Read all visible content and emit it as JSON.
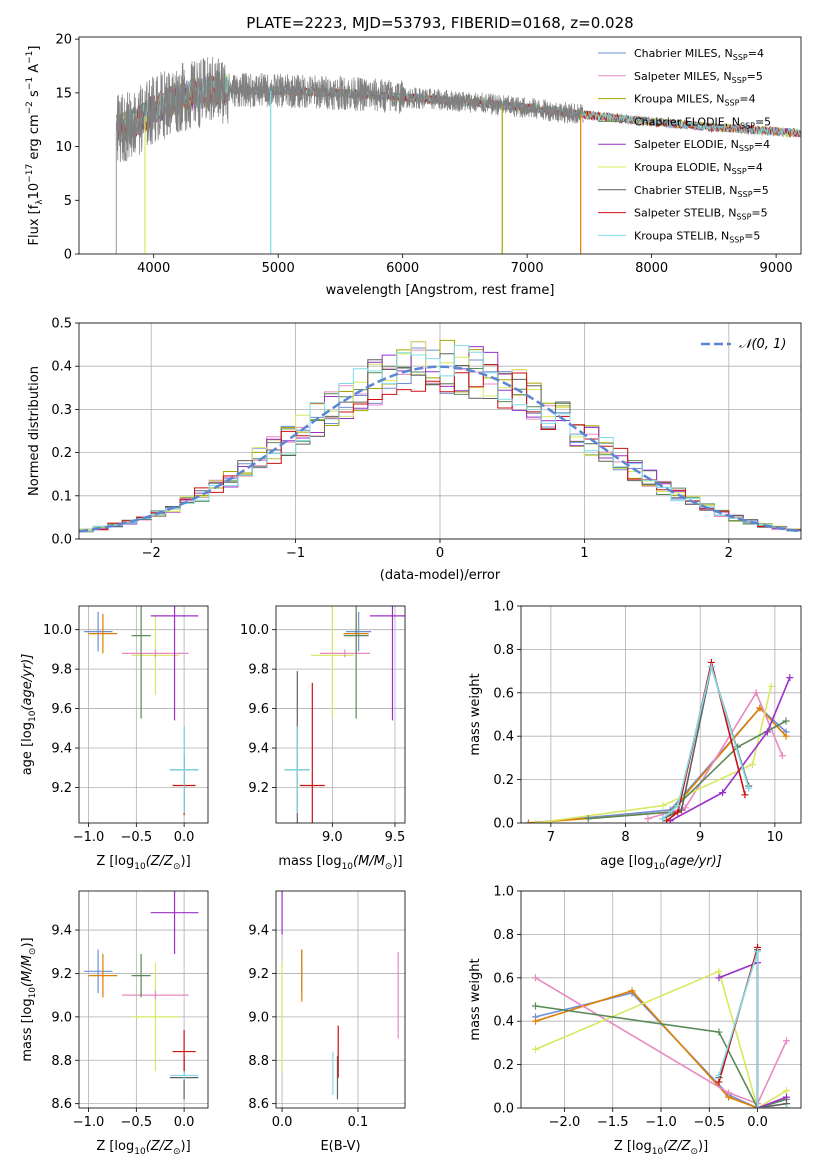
{
  "colors": {
    "chabrier_miles": "#6f8fd8",
    "salpeter_miles": "#e07f00",
    "kroupa_miles": "#a6a600",
    "chabrier_elodie": "#5a8a5a",
    "salpeter_elodie": "#9b30c9",
    "kroupa_elodie": "#d8e860",
    "chabrier_stelib": "#606060",
    "salpeter_stelib": "#cc1010",
    "kroupa_stelib": "#7fdce8",
    "model_legend": [
      "#6f8fd8",
      "#e88ac0",
      "#a6a600",
      "#5a8a5a",
      "#9b30c9",
      "#d8e860",
      "#606060",
      "#cc1010",
      "#7fdce8"
    ],
    "normal_curve": "#5b86d6",
    "data": "#808080"
  },
  "chart_data": [
    {
      "id": "spectrum",
      "type": "line",
      "title": "PLATE=2223, MJD=53793, FIBERID=0168, z=0.028",
      "xlabel": "wavelength [Angstrom, rest frame]",
      "ylabel_text": "Flux [f",
      "ylabel_sub": "λ",
      "ylabel_rest": "10",
      "ylabel_sup": "−17",
      "ylabel_tail": " erg cm",
      "ylabel_sup2": "−2",
      "ylabel_tail2": " s",
      "ylabel_sup3": "−1",
      "ylabel_tail3": " A",
      "ylabel_sup4": "−1",
      "ylabel_end": "]",
      "xlim": [
        3400,
        9200
      ],
      "ylim": [
        0,
        20.2
      ],
      "xticks": [
        4000,
        5000,
        6000,
        7000,
        8000,
        9000
      ],
      "yticks": [
        0,
        5,
        10,
        15,
        20
      ],
      "continuum": [
        [
          3700,
          11.5
        ],
        [
          3900,
          12.5
        ],
        [
          4000,
          13.5
        ],
        [
          4200,
          14.5
        ],
        [
          4500,
          15.3
        ],
        [
          5000,
          15.2
        ],
        [
          5500,
          15.0
        ],
        [
          6000,
          14.6
        ],
        [
          6500,
          14.2
        ],
        [
          7000,
          13.6
        ],
        [
          7500,
          12.9
        ],
        [
          8000,
          12.3
        ],
        [
          8500,
          11.8
        ],
        [
          9000,
          11.4
        ],
        [
          9200,
          11.2
        ]
      ],
      "data_range": [
        3700,
        7450
      ],
      "model_range": [
        3700,
        9200
      ],
      "series": [
        {
          "name": "Chabrier MILES, N",
          "sub": "SSP",
          "val": "=4"
        },
        {
          "name": "Salpeter MILES, N",
          "sub": "SSP",
          "val": "=5"
        },
        {
          "name": "Kroupa MILES, N",
          "sub": "SSP",
          "val": "=4"
        },
        {
          "name": "Chabrier ELODIE, N",
          "sub": "SSP",
          "val": "=5"
        },
        {
          "name": "Salpeter ELODIE, N",
          "sub": "SSP",
          "val": "=4"
        },
        {
          "name": "Kroupa ELODIE, N",
          "sub": "SSP",
          "val": "=4"
        },
        {
          "name": "Chabrier STELIB, N",
          "sub": "SSP",
          "val": "=5"
        },
        {
          "name": "Salpeter STELIB, N",
          "sub": "SSP",
          "val": "=5"
        },
        {
          "name": "Kroupa STELIB, N",
          "sub": "SSP",
          "val": "=5"
        }
      ]
    },
    {
      "id": "residuals",
      "type": "line",
      "xlabel": "(data-model)/error",
      "ylabel": "Normed distribution",
      "xlim": [
        -2.5,
        2.5
      ],
      "ylim": [
        0,
        0.5
      ],
      "xticks": [
        -2,
        -1,
        0,
        1,
        2
      ],
      "xticklabels": [
        "−2",
        "−1",
        "0",
        "1",
        "2"
      ],
      "yticks": [
        0.0,
        0.1,
        0.2,
        0.3,
        0.4,
        0.5
      ],
      "yticklabels": [
        "0.0",
        "0.1",
        "0.2",
        "0.3",
        "0.4",
        "0.5"
      ],
      "legend": "𝒩(0, 1)",
      "bin_width": 0.1
    },
    {
      "id": "age-vs-Z",
      "type": "scatter",
      "xlabel": "Z [log",
      "xlabel_sub": "10",
      "xlabel_tail": "(Z/Z",
      "xlabel_sub2": "⊙",
      "xlabel_end": ")]",
      "ylabel": "age  [log",
      "ylabel_sub": "10",
      "ylabel_tail": "(age/yr)]",
      "xlim": [
        -1.1,
        0.25
      ],
      "ylim": [
        9.02,
        10.12
      ],
      "xticks": [
        -1.0,
        -0.5,
        0.0
      ],
      "xticklabels": [
        "−1.0",
        "−0.5",
        "0.0"
      ],
      "yticks": [
        9.2,
        9.4,
        9.6,
        9.8,
        10.0
      ],
      "yticklabels": [
        "9.2",
        "9.4",
        "9.6",
        "9.8",
        "10.0"
      ],
      "points": [
        {
          "c": "chabrier_miles",
          "x": -0.9,
          "y": 9.99,
          "xe": 0.15,
          "ye": 0.1
        },
        {
          "c": "salpeter_miles",
          "x": -0.85,
          "y": 9.98,
          "xe": 0.15,
          "ye": 0.1
        },
        {
          "c": "kroupa_elodie",
          "x": -0.3,
          "y": 9.87,
          "xe": 0.25,
          "ye": 0.2
        },
        {
          "c": "salpeter_miles_pink",
          "x": -0.3,
          "y": 9.88,
          "xe": 0.35,
          "ye": 0.02
        },
        {
          "c": "chabrier_elodie",
          "x": -0.45,
          "y": 9.97,
          "xe": 0.1,
          "ye": 0.42
        },
        {
          "c": "salpeter_elodie",
          "x": -0.1,
          "y": 10.07,
          "xe": 0.25,
          "ye": 0.53
        },
        {
          "c": "chabrier_stelib",
          "x": 0.0,
          "y": 9.29,
          "xe": 0.15,
          "ye": 0.22
        },
        {
          "c": "salpeter_stelib",
          "x": 0.0,
          "y": 9.21,
          "xe": 0.12,
          "ye": 0.15
        },
        {
          "c": "kroupa_stelib",
          "x": 0.0,
          "y": 9.29,
          "xe": 0.15,
          "ye": 0.22
        }
      ]
    },
    {
      "id": "age-vs-mass",
      "type": "scatter",
      "xlabel": "mass [log",
      "xlabel_sub": "10",
      "xlabel_tail": "(M/M",
      "xlabel_sub2": "⊙",
      "xlabel_end": ")]",
      "xlim": [
        8.55,
        9.58
      ],
      "ylim": [
        9.02,
        10.12
      ],
      "xticks": [
        8.5,
        9.0,
        9.5
      ],
      "xticklabels": [
        "8.5",
        "9.0",
        "9.5"
      ],
      "yticks": [
        9.2,
        9.4,
        9.6,
        9.8,
        10.0
      ],
      "yticklabels": [
        "9.2",
        "9.4",
        "9.6",
        "9.8",
        "10.0"
      ],
      "points": [
        {
          "c": "chabrier_miles",
          "x": 9.21,
          "y": 9.99,
          "xe": 0.1,
          "ye": 0.1
        },
        {
          "c": "salpeter_miles",
          "x": 9.19,
          "y": 9.98,
          "xe": 0.1,
          "ye": 0.1
        },
        {
          "c": "kroupa_elodie",
          "x": 9.0,
          "y": 9.87,
          "xe": 0.17,
          "ye": 0.32
        },
        {
          "c": "salpeter_miles_pink",
          "x": 9.1,
          "y": 9.88,
          "xe": 0.2,
          "ye": 0.02
        },
        {
          "c": "chabrier_elodie",
          "x": 9.19,
          "y": 9.97,
          "xe": 0.1,
          "ye": 0.42
        },
        {
          "c": "salpeter_elodie",
          "x": 9.48,
          "y": 10.07,
          "xe": 0.18,
          "ye": 0.53
        },
        {
          "c": "chabrier_stelib",
          "x": 8.72,
          "y": 9.29,
          "xe": 0.1,
          "ye": 0.5
        },
        {
          "c": "salpeter_stelib",
          "x": 8.84,
          "y": 9.21,
          "xe": 0.1,
          "ye": 0.52
        },
        {
          "c": "kroupa_stelib",
          "x": 8.72,
          "y": 9.29,
          "xe": 0.1,
          "ye": 0.22
        }
      ]
    },
    {
      "id": "weight-vs-age",
      "type": "line",
      "xlabel": "age  [log",
      "xlabel_sub": "10",
      "xlabel_tail": "(age/yr)]",
      "ylabel": "mass weight",
      "xlim": [
        6.6,
        10.35
      ],
      "ylim": [
        0,
        1.0
      ],
      "xticks": [
        7,
        8,
        9,
        10
      ],
      "xticklabels": [
        "7",
        "8",
        "9",
        "10"
      ],
      "yticks": [
        0.0,
        0.2,
        0.4,
        0.6,
        0.8,
        1.0
      ],
      "yticklabels": [
        "0.0",
        "0.2",
        "0.4",
        "0.6",
        "0.8",
        "1.0"
      ],
      "lines": [
        {
          "c": "chabrier_miles",
          "pts": [
            [
              6.7,
              0.0
            ],
            [
              8.6,
              0.06
            ],
            [
              9.8,
              0.53
            ],
            [
              10.15,
              0.42
            ]
          ]
        },
        {
          "c": "salpeter_miles",
          "pts": [
            [
              6.7,
              0.0
            ],
            [
              8.6,
              0.05
            ],
            [
              9.8,
              0.53
            ],
            [
              10.15,
              0.4
            ]
          ]
        },
        {
          "c": "salpeter_miles_pink",
          "pts": [
            [
              8.3,
              0.02
            ],
            [
              8.8,
              0.07
            ],
            [
              9.75,
              0.6
            ],
            [
              10.1,
              0.31
            ]
          ]
        },
        {
          "c": "kroupa_elodie",
          "pts": [
            [
              6.8,
              0.0
            ],
            [
              8.5,
              0.08
            ],
            [
              9.7,
              0.27
            ],
            [
              9.95,
              0.63
            ]
          ]
        },
        {
          "c": "chabrier_elodie",
          "pts": [
            [
              7.5,
              0.02
            ],
            [
              8.6,
              0.05
            ],
            [
              9.5,
              0.35
            ],
            [
              10.15,
              0.47
            ]
          ]
        },
        {
          "c": "salpeter_elodie",
          "pts": [
            [
              8.6,
              0.01
            ],
            [
              9.3,
              0.14
            ],
            [
              9.9,
              0.42
            ],
            [
              10.2,
              0.67
            ]
          ]
        },
        {
          "c": "chabrier_stelib",
          "pts": [
            [
              8.5,
              0.02
            ],
            [
              8.75,
              0.06
            ],
            [
              9.15,
              0.72
            ],
            [
              9.65,
              0.17
            ]
          ]
        },
        {
          "c": "salpeter_stelib",
          "pts": [
            [
              8.55,
              0.01
            ],
            [
              8.7,
              0.05
            ],
            [
              9.15,
              0.74
            ],
            [
              9.6,
              0.13
            ]
          ]
        },
        {
          "c": "kroupa_stelib",
          "pts": [
            [
              8.5,
              0.02
            ],
            [
              8.7,
              0.08
            ],
            [
              9.15,
              0.72
            ],
            [
              9.65,
              0.16
            ]
          ]
        }
      ]
    },
    {
      "id": "mass-vs-Z",
      "type": "scatter",
      "xlabel": "Z [log",
      "xlabel_sub": "10",
      "xlabel_tail": "(Z/Z",
      "xlabel_sub2": "⊙",
      "xlabel_end": ")]",
      "ylabel": "mass [log",
      "ylabel_sub": "10",
      "ylabel_tail": "(M/M",
      "ylabel_sub2": "⊙",
      "ylabel_end": ")]",
      "xlim": [
        -1.1,
        0.25
      ],
      "ylim": [
        8.58,
        9.58
      ],
      "xticks": [
        -1.0,
        -0.5,
        0.0
      ],
      "xticklabels": [
        "−1.0",
        "−0.5",
        "0.0"
      ],
      "yticks": [
        8.6,
        8.8,
        9.0,
        9.2,
        9.4
      ],
      "yticklabels": [
        "8.6",
        "8.8",
        "9.0",
        "9.2",
        "9.4"
      ],
      "points": [
        {
          "c": "chabrier_miles",
          "x": -0.9,
          "y": 9.21,
          "xe": 0.15,
          "ye": 0.1
        },
        {
          "c": "salpeter_miles",
          "x": -0.85,
          "y": 9.19,
          "xe": 0.15,
          "ye": 0.1
        },
        {
          "c": "kroupa_elodie",
          "x": -0.3,
          "y": 9.0,
          "xe": 0.25,
          "ye": 0.25
        },
        {
          "c": "salpeter_miles_pink",
          "x": -0.3,
          "y": 9.1,
          "xe": 0.35,
          "ye": 0.02
        },
        {
          "c": "chabrier_elodie",
          "x": -0.45,
          "y": 9.19,
          "xe": 0.1,
          "ye": 0.1
        },
        {
          "c": "salpeter_elodie",
          "x": -0.1,
          "y": 9.48,
          "xe": 0.25,
          "ye": 0.19
        },
        {
          "c": "chabrier_stelib",
          "x": 0.0,
          "y": 8.72,
          "xe": 0.15,
          "ye": 0.1
        },
        {
          "c": "salpeter_stelib",
          "x": 0.0,
          "y": 8.84,
          "xe": 0.12,
          "ye": 0.1
        },
        {
          "c": "kroupa_stelib",
          "x": 0.0,
          "y": 8.73,
          "xe": 0.15,
          "ye": 0.02
        }
      ]
    },
    {
      "id": "mass-vs-ebv",
      "type": "scatter",
      "xlabel": "E(B-V)",
      "xlim": [
        -0.008,
        0.162
      ],
      "ylim": [
        8.58,
        9.58
      ],
      "xticks": [
        0.0,
        0.1
      ],
      "xticklabels": [
        "0.0",
        "0.1"
      ],
      "yticks": [
        8.6,
        8.8,
        9.0,
        9.2,
        9.4
      ],
      "yticklabels": [
        "8.6",
        "8.8",
        "9.0",
        "9.2",
        "9.4"
      ],
      "points": [
        {
          "c": "chabrier_miles",
          "x": 0.026,
          "y": 9.21,
          "xe": 0,
          "ye": 0.1
        },
        {
          "c": "salpeter_miles",
          "x": 0.026,
          "y": 9.19,
          "xe": 0,
          "ye": 0.12
        },
        {
          "c": "kroupa_elodie",
          "x": 0.0,
          "y": 9.0,
          "xe": 0,
          "ye": 0.25
        },
        {
          "c": "salpeter_miles_pink",
          "x": 0.153,
          "y": 9.1,
          "xe": 0,
          "ye": 0.2
        },
        {
          "c": "salpeter_elodie",
          "x": 0.0,
          "y": 9.48,
          "xe": 0,
          "ye": 0.1
        },
        {
          "c": "chabrier_stelib",
          "x": 0.073,
          "y": 8.72,
          "xe": 0,
          "ye": 0.1
        },
        {
          "c": "salpeter_stelib",
          "x": 0.074,
          "y": 8.84,
          "xe": 0,
          "ye": 0.12
        },
        {
          "c": "kroupa_stelib",
          "x": 0.067,
          "y": 8.74,
          "xe": 0,
          "ye": 0.1
        }
      ]
    },
    {
      "id": "weight-vs-Z",
      "type": "line",
      "xlabel": "Z [log",
      "xlabel_sub": "10",
      "xlabel_tail": "(Z/Z",
      "xlabel_sub2": "⊙",
      "xlabel_end": ")]",
      "ylabel": "mass weight",
      "xlim": [
        -2.45,
        0.45
      ],
      "ylim": [
        0,
        1.0
      ],
      "xticks": [
        -2.0,
        -1.5,
        -1.0,
        -0.5,
        0.0
      ],
      "xticklabels": [
        "−2.0",
        "−1.5",
        "−1.0",
        "−0.5",
        "0.0"
      ],
      "yticks": [
        0.0,
        0.2,
        0.4,
        0.6,
        0.8,
        1.0
      ],
      "yticklabels": [
        "0.0",
        "0.2",
        "0.4",
        "0.6",
        "0.8",
        "1.0"
      ],
      "lines": [
        {
          "c": "chabrier_miles",
          "pts": [
            [
              -2.3,
              0.42
            ],
            [
              -1.3,
              0.53
            ],
            [
              -0.3,
              0.06
            ],
            [
              0.0,
              0.0
            ]
          ]
        },
        {
          "c": "salpeter_miles",
          "pts": [
            [
              -2.3,
              0.4
            ],
            [
              -1.3,
              0.54
            ],
            [
              -0.3,
              0.05
            ],
            [
              0.0,
              0.0
            ]
          ]
        },
        {
          "c": "salpeter_miles_pink",
          "pts": [
            [
              -2.3,
              0.6
            ],
            [
              -0.3,
              0.07
            ],
            [
              0.0,
              0.02
            ],
            [
              0.3,
              0.31
            ]
          ]
        },
        {
          "c": "kroupa_elodie",
          "pts": [
            [
              -2.3,
              0.27
            ],
            [
              -0.4,
              0.63
            ],
            [
              0.0,
              0.0
            ],
            [
              0.3,
              0.08
            ]
          ]
        },
        {
          "c": "chabrier_elodie",
          "pts": [
            [
              -2.3,
              0.47
            ],
            [
              -0.4,
              0.35
            ],
            [
              0.0,
              0.0
            ],
            [
              0.3,
              0.04
            ]
          ]
        },
        {
          "c": "salpeter_elodie",
          "pts": [
            [
              -0.4,
              0.6
            ],
            [
              0.0,
              0.67
            ],
            [
              0.0,
              0.0
            ],
            [
              0.3,
              0.05
            ]
          ]
        },
        {
          "c": "chabrier_stelib",
          "pts": [
            [
              -0.4,
              0.14
            ],
            [
              0.0,
              0.73
            ],
            [
              0.0,
              0.0
            ],
            [
              0.3,
              0.02
            ]
          ]
        },
        {
          "c": "salpeter_stelib",
          "pts": [
            [
              -0.4,
              0.12
            ],
            [
              0.0,
              0.74
            ],
            [
              0.0,
              0.0
            ],
            [
              0.3,
              0.0
            ]
          ]
        },
        {
          "c": "kroupa_stelib",
          "pts": [
            [
              -0.4,
              0.15
            ],
            [
              0.0,
              0.72
            ],
            [
              0.0,
              0.0
            ],
            [
              0.3,
              0.0
            ]
          ]
        }
      ]
    }
  ]
}
